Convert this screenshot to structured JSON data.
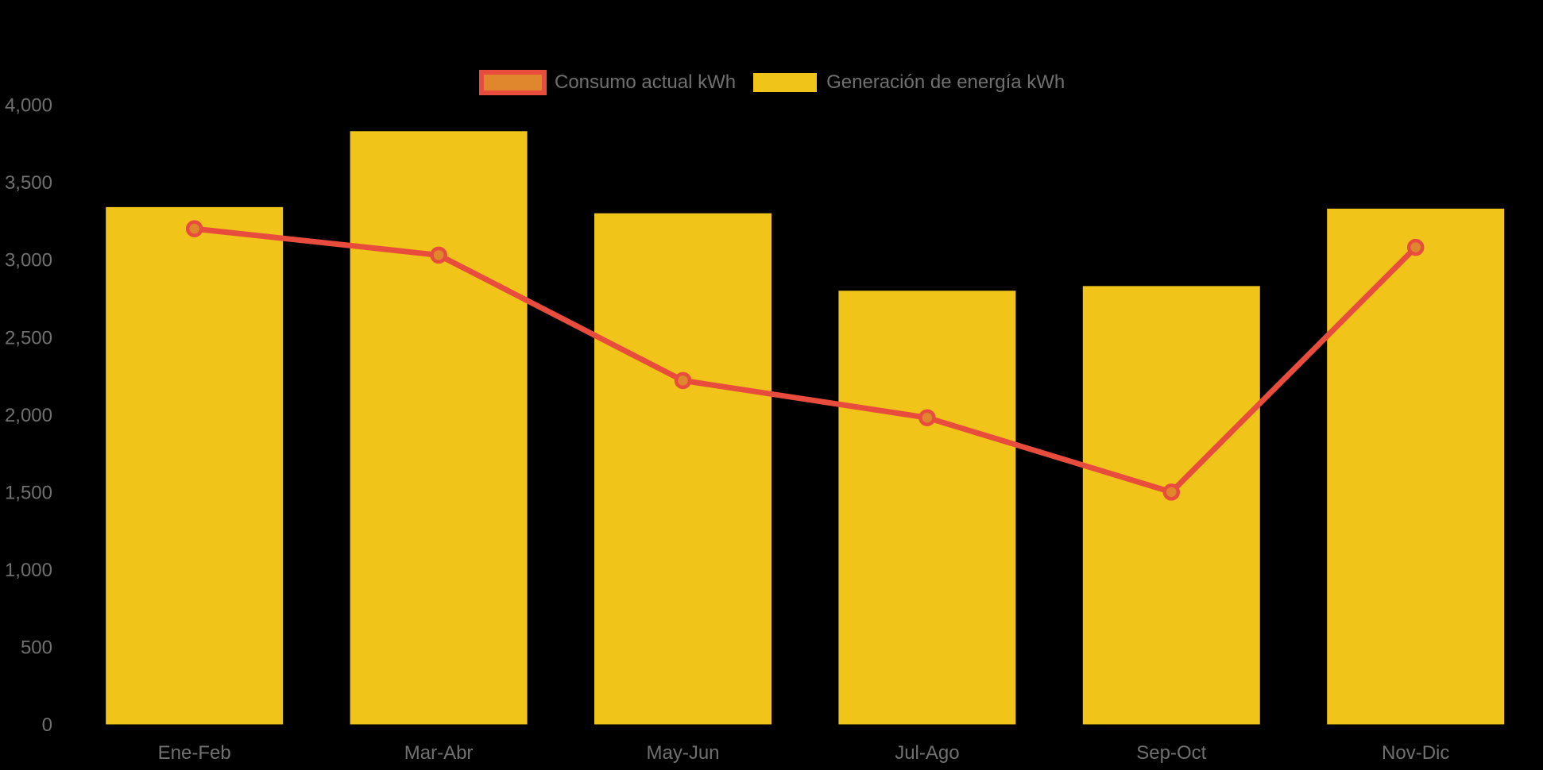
{
  "background_color": "#000000",
  "legend": {
    "position": "top-center",
    "items": [
      {
        "label": "Consumo actual kWh",
        "series_type": "line",
        "swatch_fill": "#E0872D",
        "swatch_border": "#E74C3C"
      },
      {
        "label": "Generación de energía kWh",
        "series_type": "bar",
        "swatch_fill": "#F0C419"
      }
    ]
  },
  "colors": {
    "bar_yellow": "#F0C419",
    "line_red": "#E74C3C",
    "marker_orange_fill": "#E0872D",
    "axis_text_gray": "#707070",
    "background": "#000000"
  },
  "chart_data": {
    "type": "bar",
    "subtype": "bar+line combo",
    "title": "",
    "xlabel": "",
    "ylabel": "",
    "categories": [
      "Ene-Feb",
      "Mar-Abr",
      "May-Jun",
      "Jul-Ago",
      "Sep-Oct",
      "Nov-Dic"
    ],
    "series": [
      {
        "name": "Generación de energía kWh",
        "type": "bar",
        "color": "#F0C419",
        "values": [
          3340,
          3830,
          3300,
          2800,
          2830,
          3330
        ]
      },
      {
        "name": "Consumo actual kWh",
        "type": "line",
        "color": "#E74C3C",
        "marker_fill": "#E0872D",
        "values": [
          3200,
          3030,
          2220,
          1980,
          1500,
          3080
        ]
      }
    ],
    "ylim": [
      0,
      4000
    ],
    "ytick_step": 500,
    "ytick_labels": [
      "0",
      "500",
      "1,000",
      "1,500",
      "2,000",
      "2,500",
      "3,000",
      "3,500",
      "4,000"
    ],
    "grid": false,
    "legend_position": "top-center",
    "axis_text_color": "#707070"
  }
}
